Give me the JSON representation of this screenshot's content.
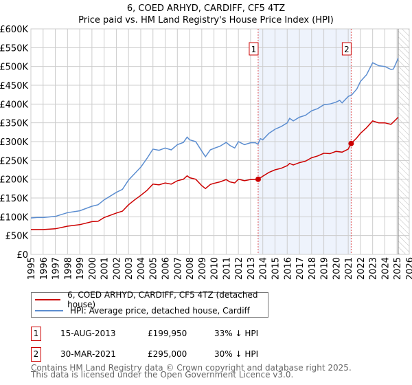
{
  "chart_data": {
    "type": "line",
    "title": "6, COED ARHYD, CARDIFF, CF5 4TZ",
    "subtitle": "Price paid vs. HM Land Registry's House Price Index (HPI)",
    "xlim": [
      1995,
      2026
    ],
    "ylim": [
      0,
      600000
    ],
    "yticks": [
      {
        "v": 0,
        "label": "£0"
      },
      {
        "v": 50000,
        "label": "£50K"
      },
      {
        "v": 100000,
        "label": "£100K"
      },
      {
        "v": 150000,
        "label": "£150K"
      },
      {
        "v": 200000,
        "label": "£200K"
      },
      {
        "v": 250000,
        "label": "£250K"
      },
      {
        "v": 300000,
        "label": "£300K"
      },
      {
        "v": 350000,
        "label": "£350K"
      },
      {
        "v": 400000,
        "label": "£400K"
      },
      {
        "v": 450000,
        "label": "£450K"
      },
      {
        "v": 500000,
        "label": "£500K"
      },
      {
        "v": 550000,
        "label": "£550K"
      },
      {
        "v": 600000,
        "label": "£600K"
      }
    ],
    "xticks": [
      "1995",
      "1996",
      "1997",
      "1998",
      "1999",
      "2000",
      "2001",
      "2002",
      "2003",
      "2004",
      "2005",
      "2006",
      "2007",
      "2008",
      "2009",
      "2010",
      "2011",
      "2012",
      "2013",
      "2014",
      "2015",
      "2016",
      "2017",
      "2018",
      "2019",
      "2020",
      "2021",
      "2022",
      "2023",
      "2024",
      "2025",
      "2026"
    ],
    "grid": true,
    "shaded_range": [
      2013.62,
      2021.24
    ],
    "hatched_from": 2025.1,
    "series": [
      {
        "name": "6, COED ARHYD, CARDIFF, CF5 4TZ (detached house)",
        "color": "#cc0000",
        "x": [
          1995,
          1996,
          1997,
          1998,
          1999,
          2000,
          2000.5,
          2001,
          2002,
          2002.5,
          2003,
          2003.5,
          2004,
          2004.5,
          2005,
          2005.5,
          2006,
          2006.5,
          2007,
          2007.5,
          2007.8,
          2008,
          2008.5,
          2009,
          2009.3,
          2009.7,
          2010,
          2010.5,
          2011,
          2011.3,
          2011.7,
          2012,
          2012.5,
          2013,
          2013.62,
          2014,
          2014.5,
          2015,
          2015.5,
          2016,
          2016.2,
          2016.5,
          2017,
          2017.5,
          2018,
          2018.5,
          2019,
          2019.5,
          2020,
          2020.5,
          2021,
          2021.24,
          2021.7,
          2022,
          2022.5,
          2023,
          2023.5,
          2024,
          2024.5,
          2025.1
        ],
        "y": [
          66,
          66,
          68,
          75,
          79,
          87,
          88,
          98,
          110,
          115,
          132,
          145,
          157,
          170,
          187,
          185,
          190,
          187,
          196,
          200,
          209,
          204,
          200,
          183,
          175,
          186,
          189,
          193,
          199,
          193,
          190,
          200,
          196,
          199,
          199.95,
          208,
          218,
          225,
          229,
          236,
          242,
          238,
          244,
          248,
          257,
          262,
          269,
          268,
          274,
          272,
          280,
          295,
          310,
          322,
          337,
          355,
          350,
          350,
          346,
          365
        ]
      },
      {
        "name": "HPI: Average price, detached house, Cardiff",
        "color": "#5b8dd0",
        "x": [
          1995,
          1995.5,
          1996,
          1997,
          1998,
          1999,
          2000,
          2000.5,
          2001,
          2002,
          2002.5,
          2003,
          2003.5,
          2004,
          2004.5,
          2005,
          2005.5,
          2006,
          2006.5,
          2007,
          2007.5,
          2007.8,
          2008,
          2008.5,
          2009,
          2009.3,
          2009.7,
          2010,
          2010.5,
          2011,
          2011.3,
          2011.7,
          2012,
          2012.5,
          2013,
          2013.4,
          2013.6,
          2013.8,
          2014,
          2014.5,
          2015,
          2015.5,
          2016,
          2016.2,
          2016.5,
          2017,
          2017.5,
          2018,
          2018.5,
          2019,
          2019.5,
          2020,
          2020.3,
          2020.5,
          2021,
          2021.3,
          2021.7,
          2022,
          2022.5,
          2023,
          2023.5,
          2024,
          2024.5,
          2024.7,
          2025.1
        ],
        "y": [
          97,
          98,
          98,
          101,
          111,
          116,
          128,
          132,
          145,
          165,
          173,
          198,
          215,
          232,
          255,
          280,
          277,
          283,
          278,
          292,
          298,
          312,
          305,
          300,
          275,
          260,
          278,
          282,
          288,
          298,
          290,
          283,
          300,
          292,
          297,
          297,
          293,
          308,
          305,
          322,
          333,
          340,
          350,
          362,
          355,
          365,
          370,
          382,
          388,
          398,
          400,
          405,
          410,
          403,
          420,
          425,
          440,
          460,
          478,
          510,
          502,
          500,
          492,
          493,
          522
        ]
      }
    ],
    "sales": [
      {
        "n": "1",
        "date": "15-AUG-2013",
        "x": 2013.62,
        "price": "£199,950",
        "value": 199950,
        "hpi": "33% ↓ HPI"
      },
      {
        "n": "2",
        "date": "30-MAR-2021",
        "x": 2021.24,
        "price": "£295,000",
        "value": 295000,
        "hpi": "30% ↓ HPI"
      }
    ]
  },
  "footer": {
    "line1": "Contains HM Land Registry data © Crown copyright and database right 2025.",
    "line2": "This data is licensed under the Open Government Licence v3.0."
  }
}
